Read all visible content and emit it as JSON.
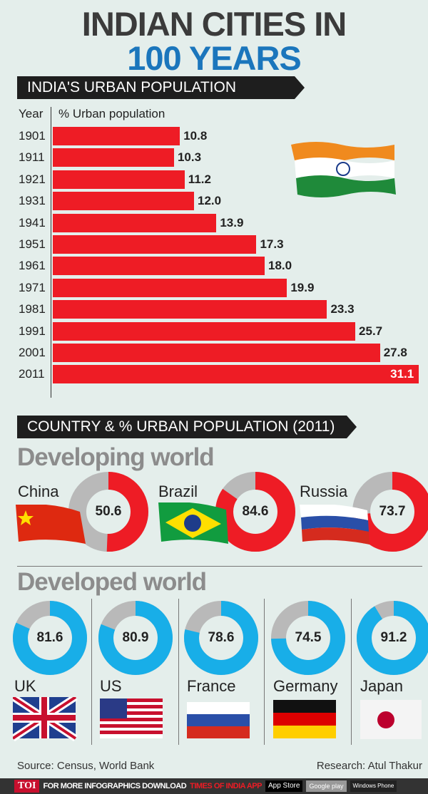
{
  "title_line1": "INDIAN CITIES IN",
  "title_line2": "100 YEARS",
  "colors": {
    "title_blue": "#1b76bc",
    "bar_red": "#ee1c25",
    "developed_blue": "#18aee8",
    "remainder_grey": "#b9b9b9"
  },
  "chart_data": [
    {
      "type": "bar",
      "orientation": "horizontal",
      "title": "INDIA'S URBAN POPULATION",
      "xlabel": "% Urban population",
      "ylabel": "Year",
      "categories": [
        "1901",
        "1911",
        "1921",
        "1931",
        "1941",
        "1951",
        "1961",
        "1971",
        "1981",
        "1991",
        "2001",
        "2011"
      ],
      "values": [
        10.8,
        10.3,
        11.2,
        12.0,
        13.9,
        17.3,
        18.0,
        19.9,
        23.3,
        25.7,
        27.8,
        31.1
      ],
      "labels": [
        "10.8",
        "10.3",
        "11.2",
        "12.0",
        "13.9",
        "17.3",
        "18.0",
        "19.9",
        "23.3",
        "25.7",
        "27.8",
        "31.1"
      ]
    },
    {
      "type": "pie",
      "title": "COUNTRY & % URBAN POPULATION (2011)",
      "groups": [
        {
          "name": "Developing world",
          "color": "#ee1c25",
          "items": [
            {
              "country": "China",
              "value": 50.6,
              "label": "50.6"
            },
            {
              "country": "Brazil",
              "value": 84.6,
              "label": "84.6"
            },
            {
              "country": "Russia",
              "value": 73.7,
              "label": "73.7"
            }
          ]
        },
        {
          "name": "Developed world",
          "color": "#18aee8",
          "items": [
            {
              "country": "UK",
              "value": 81.6,
              "label": "81.6"
            },
            {
              "country": "US",
              "value": 80.9,
              "label": "80.9"
            },
            {
              "country": "France",
              "value": 78.6,
              "label": "78.6"
            },
            {
              "country": "Germany",
              "value": 74.5,
              "label": "74.5"
            },
            {
              "country": "Japan",
              "value": 91.2,
              "label": "91.2"
            }
          ]
        }
      ]
    }
  ],
  "source": "Source: Census, World Bank",
  "research": "Research: Atul Thakur",
  "footer": {
    "logo": "TOI",
    "text": "FOR MORE  INFOGRAPHICS DOWNLOAD",
    "app": "TIMES OF INDIA  APP",
    "store1": "App Store",
    "store2": "Google play",
    "store3": "Windows Phone"
  }
}
